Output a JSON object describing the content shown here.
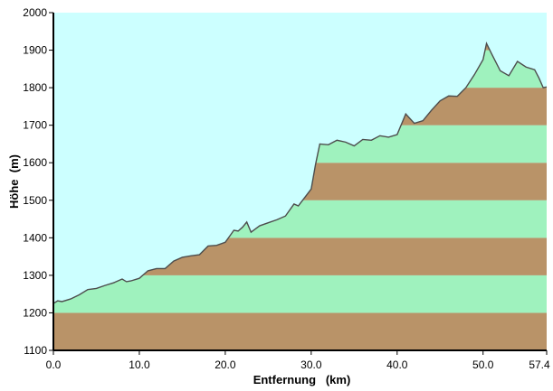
{
  "chart_data": {
    "type": "area",
    "xlabel": "Entfernung   (km)",
    "ylabel": "Höhe  (m)",
    "xlim": [
      0,
      57.4
    ],
    "ylim": [
      1100,
      2000
    ],
    "x_ticks": [
      0,
      10,
      20,
      30,
      40,
      50,
      57.4
    ],
    "x_tick_labels": [
      "0.0",
      "10.0",
      "20.0",
      "30.0",
      "40.0",
      "50.0",
      "57.4"
    ],
    "y_ticks": [
      1100,
      1200,
      1300,
      1400,
      1500,
      1600,
      1700,
      1800,
      1900,
      2000
    ],
    "band_step": 100,
    "colors": {
      "sky": "#ccffff",
      "band_green": "#9ff2be",
      "band_brown": "#b99368",
      "profile_line": "#4d4d4d"
    },
    "series": [
      {
        "x": [
          0,
          0.5,
          1,
          2,
          3,
          4,
          5,
          6,
          7,
          8,
          8.5,
          9,
          10,
          11,
          12,
          13,
          14,
          15,
          16,
          17,
          18,
          19,
          20,
          21,
          21.5,
          22,
          22.5,
          23,
          24,
          25,
          26,
          27,
          28,
          28.5,
          29,
          30,
          30.5,
          31,
          32,
          33,
          34,
          35,
          36,
          37,
          38,
          39,
          40,
          41,
          42,
          43,
          44,
          45,
          46,
          47,
          48,
          49,
          50,
          50.4,
          51,
          52,
          53,
          54,
          55,
          56,
          56.5,
          57,
          57.4
        ],
        "y": [
          1225,
          1232,
          1230,
          1237,
          1248,
          1262,
          1265,
          1273,
          1280,
          1290,
          1283,
          1285,
          1292,
          1312,
          1318,
          1318,
          1338,
          1348,
          1352,
          1355,
          1378,
          1380,
          1388,
          1420,
          1418,
          1428,
          1442,
          1415,
          1432,
          1440,
          1448,
          1458,
          1490,
          1485,
          1500,
          1530,
          1595,
          1650,
          1648,
          1660,
          1655,
          1645,
          1662,
          1660,
          1672,
          1668,
          1675,
          1730,
          1705,
          1712,
          1740,
          1765,
          1778,
          1777,
          1800,
          1835,
          1875,
          1918,
          1890,
          1845,
          1832,
          1870,
          1855,
          1848,
          1826,
          1800,
          1802
        ]
      }
    ]
  }
}
